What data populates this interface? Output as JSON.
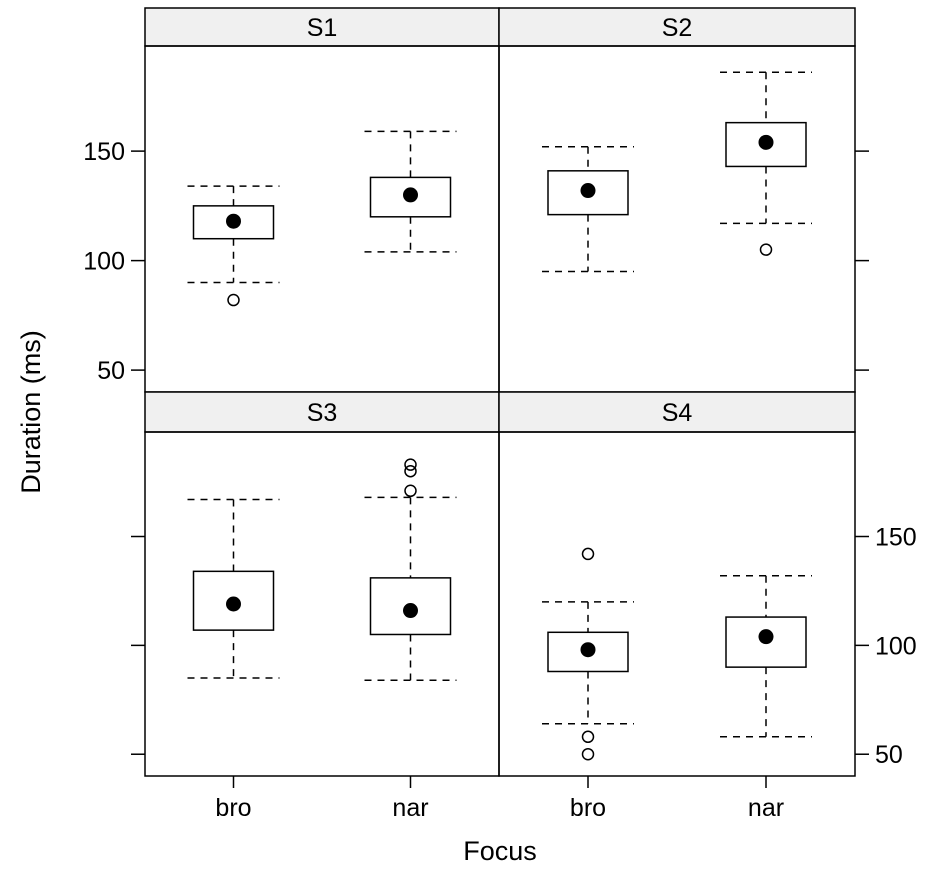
{
  "chart_data": {
    "type": "box",
    "xlabel": "Focus",
    "ylabel": "Duration (ms)",
    "y_ticks": [
      50,
      100,
      150
    ],
    "ylim": [
      40,
      198
    ],
    "categories": [
      "bro",
      "nar"
    ],
    "layout": "2x2",
    "panels": [
      {
        "title": "S1",
        "boxes": [
          {
            "category": "bro",
            "lower_whisker": 90,
            "q1": 110,
            "median": 118,
            "q3": 125,
            "upper_whisker": 134,
            "outliers": [
              82
            ]
          },
          {
            "category": "nar",
            "lower_whisker": 104,
            "q1": 120,
            "median": 130,
            "q3": 138,
            "upper_whisker": 159,
            "outliers": []
          }
        ]
      },
      {
        "title": "S2",
        "boxes": [
          {
            "category": "bro",
            "lower_whisker": 95,
            "q1": 121,
            "median": 132,
            "q3": 141,
            "upper_whisker": 152,
            "outliers": []
          },
          {
            "category": "nar",
            "lower_whisker": 117,
            "q1": 143,
            "median": 154,
            "q3": 163,
            "upper_whisker": 186,
            "outliers": [
              105
            ]
          }
        ]
      },
      {
        "title": "S3",
        "boxes": [
          {
            "category": "bro",
            "lower_whisker": 85,
            "q1": 107,
            "median": 119,
            "q3": 134,
            "upper_whisker": 167,
            "outliers": []
          },
          {
            "category": "nar",
            "lower_whisker": 84,
            "q1": 105,
            "median": 116,
            "q3": 131,
            "upper_whisker": 168,
            "outliers": [
              171,
              180,
              183
            ]
          }
        ]
      },
      {
        "title": "S4",
        "boxes": [
          {
            "category": "bro",
            "lower_whisker": 64,
            "q1": 88,
            "median": 98,
            "q3": 106,
            "upper_whisker": 120,
            "outliers": [
              58,
              50,
              142
            ]
          },
          {
            "category": "nar",
            "lower_whisker": 58,
            "q1": 90,
            "median": 104,
            "q3": 113,
            "upper_whisker": 132,
            "outliers": []
          }
        ]
      }
    ]
  }
}
